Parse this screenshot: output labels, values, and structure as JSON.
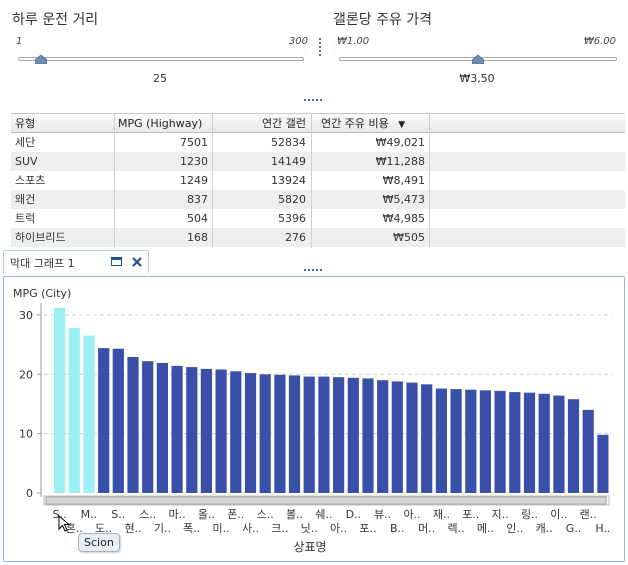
{
  "controls": {
    "distance": {
      "title": "하루 운전 거리",
      "min_label": "1",
      "max_label": "300",
      "value_label": "25",
      "value_fraction": 0.08
    },
    "price": {
      "title": "갤론당 주유 가격",
      "min_label": "₩1.00",
      "max_label": "₩6.00",
      "value_label": "₩3,50",
      "value_fraction": 0.5
    }
  },
  "table": {
    "columns": [
      "유형",
      "MPG (Highway)",
      "연간 갤런",
      "연간 주유 비용"
    ],
    "sort_indicator": "▼",
    "rows": [
      [
        "세단",
        "7501",
        "52834",
        "₩49,021"
      ],
      [
        "SUV",
        "1230",
        "14149",
        "₩11,288"
      ],
      [
        "스포츠",
        "1249",
        "13924",
        "₩8,491"
      ],
      [
        "왜건",
        "837",
        "5820",
        "₩5,473"
      ],
      [
        "트럭",
        "504",
        "5396",
        "₩4,985"
      ],
      [
        "하이브리드",
        "168",
        "276",
        "₩505"
      ]
    ]
  },
  "tab": {
    "label": "막대 그래프 1",
    "maximize_icon": "maximize-icon",
    "close_icon": "close-icon"
  },
  "tooltip": {
    "text": "Scion"
  },
  "chart_data": {
    "type": "bar",
    "ylabel": "MPG (City)",
    "xlabel": "상표명",
    "ylim": [
      0,
      32
    ],
    "yticks": [
      0,
      10,
      20,
      30
    ],
    "grid": true,
    "highlight_color": "#9cf0f4",
    "bar_color": "#3a4fa8",
    "highlighted_count": 3,
    "tick_labels_row1": [
      "S..",
      "M..",
      "S..",
      "스..",
      "마..",
      "올..",
      "폰..",
      "스..",
      "볼..",
      "쉐..",
      "D..",
      "뷰..",
      "아..",
      "재..",
      "포..",
      "지..",
      "링..",
      "이..",
      "랜.."
    ],
    "tick_labels_row2": [
      "혼..",
      "도..",
      "현..",
      "기..",
      "폭..",
      "미..",
      "사..",
      "크..",
      "닛..",
      "아..",
      "포..",
      "B..",
      "머..",
      "렉..",
      "메..",
      "인..",
      "캐..",
      "G..",
      "H.."
    ],
    "values": [
      31.2,
      27.8,
      26.5,
      24.4,
      24.3,
      22.9,
      22.2,
      21.9,
      21.4,
      21.2,
      20.9,
      20.8,
      20.5,
      20.2,
      20.0,
      19.9,
      19.8,
      19.6,
      19.6,
      19.5,
      19.4,
      19.3,
      19.0,
      18.8,
      18.6,
      18.3,
      17.6,
      17.5,
      17.4,
      17.3,
      17.2,
      17.0,
      16.9,
      16.7,
      16.4,
      15.8,
      14.0,
      9.8
    ]
  }
}
